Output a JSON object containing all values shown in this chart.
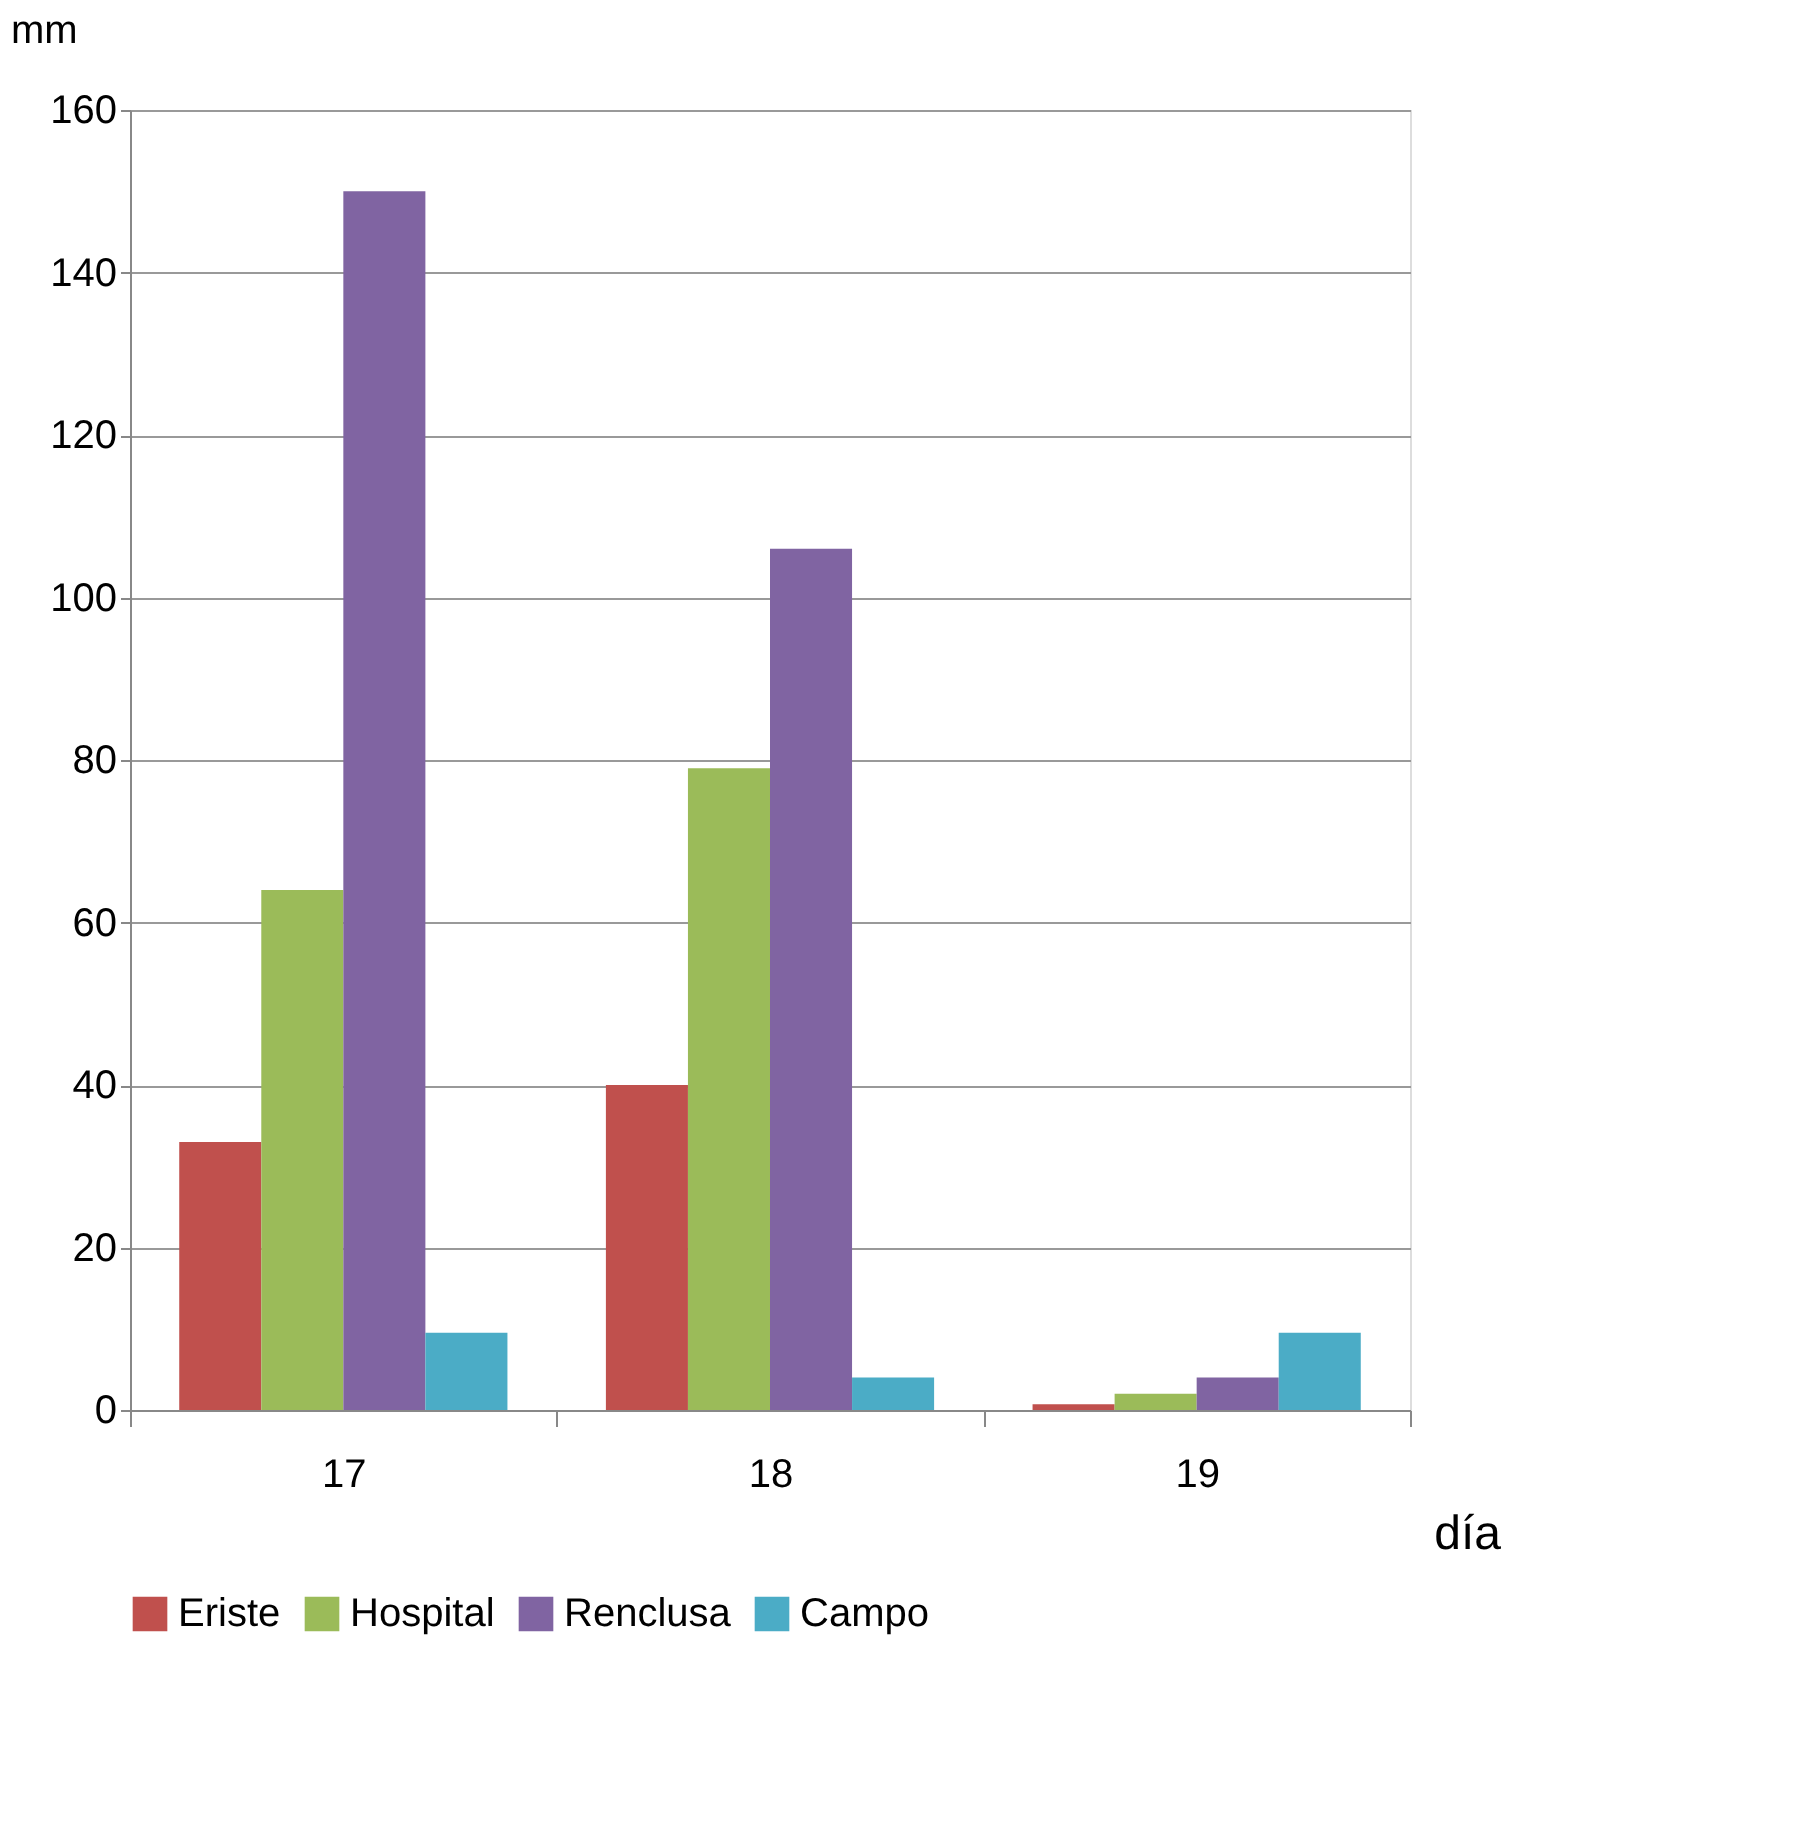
{
  "chart_data": {
    "type": "bar",
    "xlabel": "día",
    "ylabel": "mm",
    "categories": [
      "17",
      "18",
      "19"
    ],
    "series": [
      {
        "name": "Eriste",
        "color": "#c0504d",
        "values": [
          33,
          40,
          0.7
        ]
      },
      {
        "name": "Hospital",
        "color": "#9bbb59",
        "values": [
          64,
          79,
          2
        ]
      },
      {
        "name": "Renclusa",
        "color": "#8064a2",
        "values": [
          150,
          106,
          4
        ]
      },
      {
        "name": "Campo",
        "color": "#4bacc6",
        "values": [
          9.5,
          4,
          9.5
        ]
      }
    ],
    "ylim": [
      0,
      160
    ],
    "yticks": [
      0,
      20,
      40,
      60,
      80,
      100,
      120,
      140,
      160
    ],
    "grid": "y",
    "legend": "bottom"
  }
}
